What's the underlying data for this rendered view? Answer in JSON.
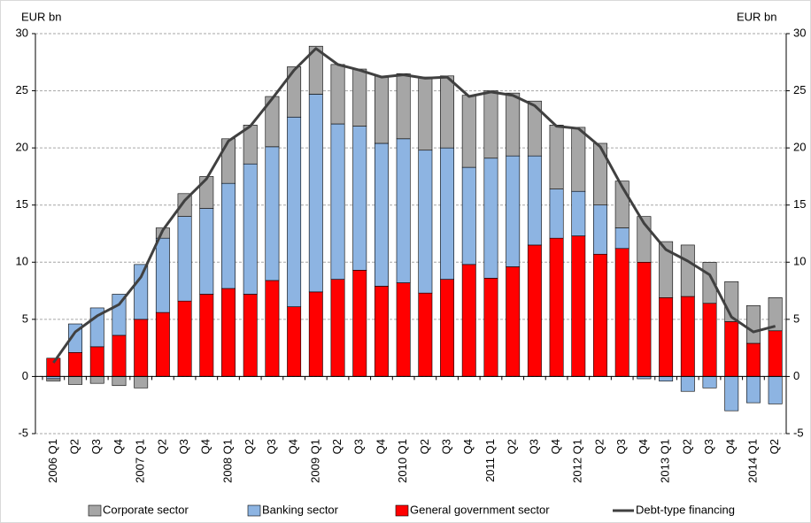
{
  "chart_data": {
    "type": "bar",
    "y_label": "EUR bn",
    "y2_label": "EUR bn",
    "categories": [
      "2006 Q1",
      "Q2",
      "Q3",
      "Q4",
      "2007 Q1",
      "Q2",
      "Q3",
      "Q4",
      "2008 Q1",
      "Q2",
      "Q3",
      "Q4",
      "2009 Q1",
      "Q2",
      "Q3",
      "Q4",
      "2010 Q1",
      "Q2",
      "Q3",
      "Q4",
      "2011 Q1",
      "Q2",
      "Q3",
      "Q4",
      "2012 Q1",
      "Q2",
      "Q3",
      "Q4",
      "2013 Q1",
      "Q2",
      "Q3",
      "Q4",
      "2014 Q1",
      "Q2"
    ],
    "series": [
      {
        "name": "Corporate sector",
        "color": "#a6a6a6",
        "values": [
          -0.2,
          -0.7,
          -0.6,
          -0.8,
          -1.0,
          0.9,
          2.0,
          2.8,
          3.9,
          3.4,
          4.4,
          4.4,
          4.2,
          5.2,
          5.0,
          5.9,
          5.7,
          6.4,
          6.3,
          6.3,
          5.9,
          5.5,
          4.8,
          5.6,
          5.6,
          5.4,
          4.1,
          4.0,
          4.9,
          4.5,
          3.6,
          3.5,
          3.3,
          2.9
        ]
      },
      {
        "name": "Banking sector",
        "color": "#8db4e2",
        "values": [
          -0.2,
          2.5,
          3.4,
          3.6,
          4.8,
          6.5,
          7.4,
          7.5,
          9.2,
          11.4,
          11.7,
          16.6,
          17.3,
          13.6,
          12.6,
          12.5,
          12.6,
          12.5,
          11.5,
          8.5,
          10.5,
          9.7,
          7.8,
          4.3,
          3.9,
          4.3,
          1.8,
          -0.2,
          -0.4,
          -1.3,
          -1.0,
          -3.0,
          -2.3,
          -2.4
        ]
      },
      {
        "name": "General government sector",
        "color": "#ff0000",
        "values": [
          1.6,
          2.1,
          2.6,
          3.6,
          5.0,
          5.6,
          6.6,
          7.2,
          7.7,
          7.2,
          8.4,
          6.1,
          7.4,
          8.5,
          9.3,
          7.9,
          8.2,
          7.3,
          8.5,
          9.8,
          8.6,
          9.6,
          11.5,
          12.1,
          12.3,
          10.7,
          11.2,
          10.0,
          6.9,
          7.0,
          6.4,
          4.8,
          2.9,
          4.0
        ]
      },
      {
        "name": "Debt-type financing",
        "type": "line",
        "color": "#404040",
        "values": [
          1.2,
          3.9,
          5.3,
          6.3,
          8.7,
          12.8,
          15.4,
          17.3,
          20.6,
          21.9,
          24.3,
          26.8,
          28.7,
          27.3,
          26.8,
          26.2,
          26.4,
          26.1,
          26.2,
          24.5,
          24.9,
          24.6,
          23.7,
          21.9,
          21.7,
          20.1,
          16.6,
          13.4,
          11.1,
          10.1,
          8.9,
          5.2,
          3.9,
          4.4
        ]
      }
    ],
    "ylim": [
      -5,
      30
    ],
    "yticks": [
      -5,
      0,
      5,
      10,
      15,
      20,
      25,
      30
    ],
    "y2lim": [
      -5,
      30
    ],
    "y2ticks": [
      -5,
      0,
      5,
      10,
      15,
      20,
      25,
      30
    ],
    "grid": true,
    "legend": "bottom"
  }
}
